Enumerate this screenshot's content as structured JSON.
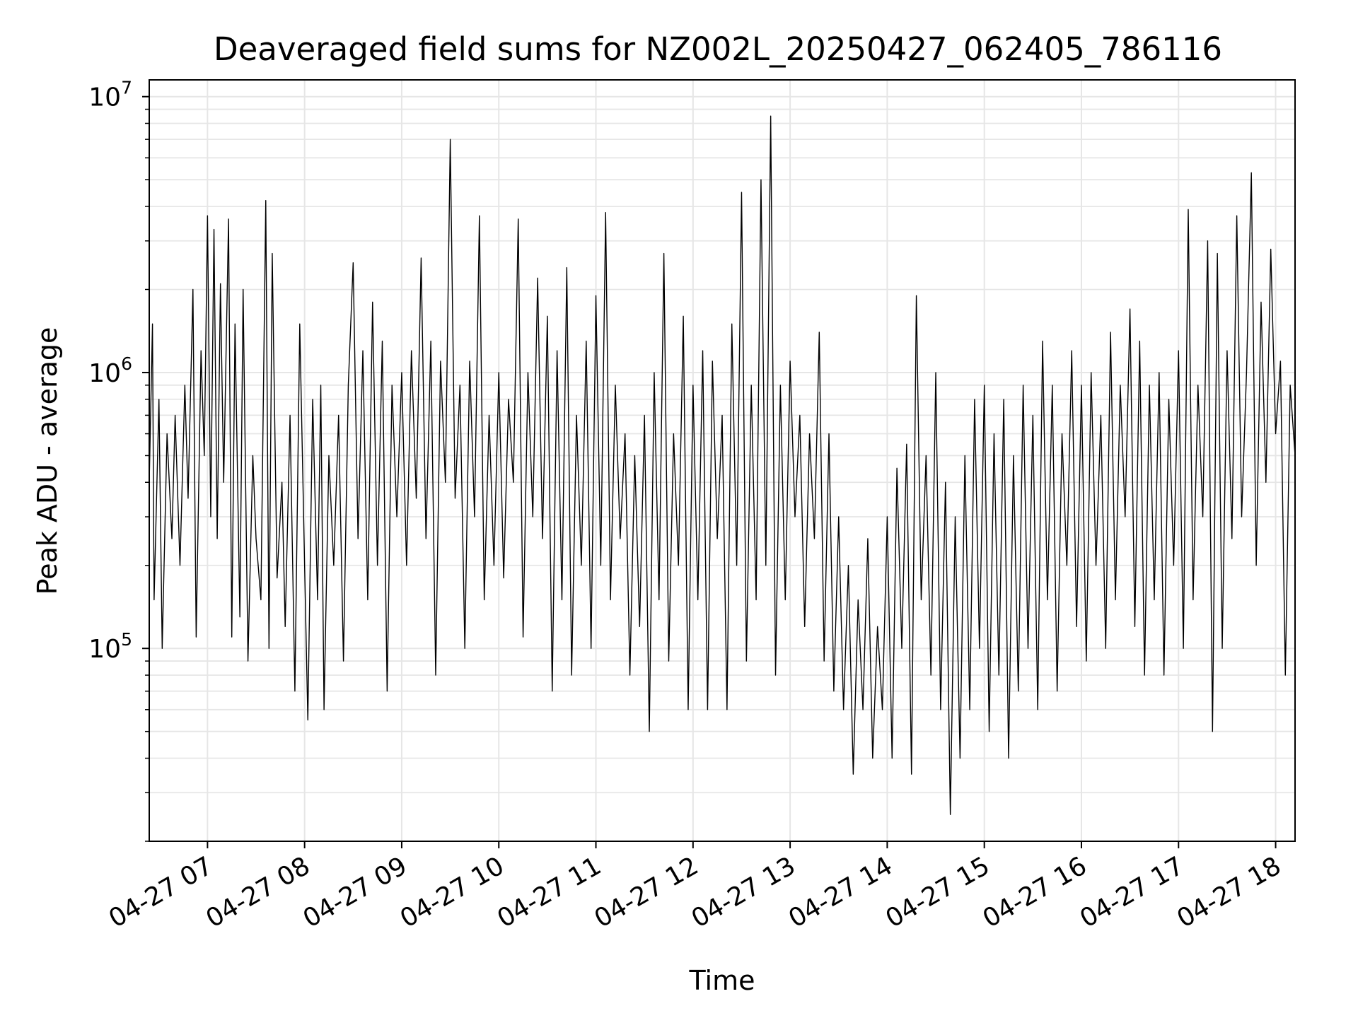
{
  "chart_data": {
    "type": "line",
    "title": "Deaveraged field sums for NZ002L_20250427_062405_786116",
    "xlabel": "Time",
    "ylabel": "Peak ADU - average",
    "yscale": "log",
    "ylim": [
      20000,
      11500000
    ],
    "xlim": [
      "2025-04-27 06:24",
      "2025-04-27 18:12"
    ],
    "grid": true,
    "legend": "none",
    "line_color": "#000000",
    "x_ticks": [
      {
        "value": "2025-04-27 07:00",
        "label": "04-27 07"
      },
      {
        "value": "2025-04-27 08:00",
        "label": "04-27 08"
      },
      {
        "value": "2025-04-27 09:00",
        "label": "04-27 09"
      },
      {
        "value": "2025-04-27 10:00",
        "label": "04-27 10"
      },
      {
        "value": "2025-04-27 11:00",
        "label": "04-27 11"
      },
      {
        "value": "2025-04-27 12:00",
        "label": "04-27 12"
      },
      {
        "value": "2025-04-27 13:00",
        "label": "04-27 13"
      },
      {
        "value": "2025-04-27 14:00",
        "label": "04-27 14"
      },
      {
        "value": "2025-04-27 15:00",
        "label": "04-27 15"
      },
      {
        "value": "2025-04-27 16:00",
        "label": "04-27 16"
      },
      {
        "value": "2025-04-27 17:00",
        "label": "04-27 17"
      },
      {
        "value": "2025-04-27 18:00",
        "label": "04-27 18"
      }
    ],
    "y_ticks": [
      {
        "value": 100000,
        "base": "10",
        "exp": "5"
      },
      {
        "value": 1000000,
        "base": "10",
        "exp": "6"
      },
      {
        "value": 10000000,
        "base": "10",
        "exp": "7"
      }
    ],
    "series": [
      {
        "points": [
          [
            "06:24",
            400000
          ],
          [
            "06:26",
            1500000
          ],
          [
            "06:27",
            150000
          ],
          [
            "06:30",
            800000
          ],
          [
            "06:32",
            100000
          ],
          [
            "06:35",
            600000
          ],
          [
            "06:38",
            250000
          ],
          [
            "06:40",
            700000
          ],
          [
            "06:43",
            200000
          ],
          [
            "06:46",
            900000
          ],
          [
            "06:48",
            350000
          ],
          [
            "06:51",
            2000000
          ],
          [
            "06:53",
            110000
          ],
          [
            "06:56",
            1200000
          ],
          [
            "06:58",
            500000
          ],
          [
            "07:00",
            3700000
          ],
          [
            "07:02",
            300000
          ],
          [
            "07:04",
            3300000
          ],
          [
            "07:06",
            250000
          ],
          [
            "07:08",
            2100000
          ],
          [
            "07:10",
            400000
          ],
          [
            "07:13",
            3600000
          ],
          [
            "07:15",
            110000
          ],
          [
            "07:17",
            1500000
          ],
          [
            "07:20",
            130000
          ],
          [
            "07:22",
            2000000
          ],
          [
            "07:25",
            90000
          ],
          [
            "07:28",
            500000
          ],
          [
            "07:30",
            250000
          ],
          [
            "07:33",
            150000
          ],
          [
            "07:36",
            4200000
          ],
          [
            "07:38",
            100000
          ],
          [
            "07:40",
            2700000
          ],
          [
            "07:43",
            180000
          ],
          [
            "07:46",
            400000
          ],
          [
            "07:48",
            120000
          ],
          [
            "07:51",
            700000
          ],
          [
            "07:54",
            70000
          ],
          [
            "07:57",
            1500000
          ],
          [
            "08:00",
            200000
          ],
          [
            "08:02",
            55000
          ],
          [
            "08:05",
            800000
          ],
          [
            "08:08",
            150000
          ],
          [
            "08:10",
            900000
          ],
          [
            "08:12",
            60000
          ],
          [
            "08:15",
            500000
          ],
          [
            "08:18",
            200000
          ],
          [
            "08:21",
            700000
          ],
          [
            "08:24",
            90000
          ],
          [
            "08:27",
            900000
          ],
          [
            "08:30",
            2500000
          ],
          [
            "08:33",
            250000
          ],
          [
            "08:36",
            1200000
          ],
          [
            "08:39",
            150000
          ],
          [
            "08:42",
            1800000
          ],
          [
            "08:45",
            200000
          ],
          [
            "08:48",
            1300000
          ],
          [
            "08:51",
            70000
          ],
          [
            "08:54",
            900000
          ],
          [
            "08:57",
            300000
          ],
          [
            "09:00",
            1000000
          ],
          [
            "09:03",
            200000
          ],
          [
            "09:06",
            1200000
          ],
          [
            "09:09",
            350000
          ],
          [
            "09:12",
            2600000
          ],
          [
            "09:15",
            250000
          ],
          [
            "09:18",
            1300000
          ],
          [
            "09:21",
            80000
          ],
          [
            "09:24",
            1100000
          ],
          [
            "09:27",
            400000
          ],
          [
            "09:30",
            7000000
          ],
          [
            "09:33",
            350000
          ],
          [
            "09:36",
            900000
          ],
          [
            "09:39",
            100000
          ],
          [
            "09:42",
            1100000
          ],
          [
            "09:45",
            300000
          ],
          [
            "09:48",
            3700000
          ],
          [
            "09:51",
            150000
          ],
          [
            "09:54",
            700000
          ],
          [
            "09:57",
            200000
          ],
          [
            "10:00",
            1000000
          ],
          [
            "10:03",
            180000
          ],
          [
            "10:06",
            800000
          ],
          [
            "10:09",
            400000
          ],
          [
            "10:12",
            3600000
          ],
          [
            "10:15",
            110000
          ],
          [
            "10:18",
            1000000
          ],
          [
            "10:21",
            300000
          ],
          [
            "10:24",
            2200000
          ],
          [
            "10:27",
            250000
          ],
          [
            "10:30",
            1600000
          ],
          [
            "10:33",
            70000
          ],
          [
            "10:36",
            1200000
          ],
          [
            "10:39",
            150000
          ],
          [
            "10:42",
            2400000
          ],
          [
            "10:45",
            80000
          ],
          [
            "10:48",
            700000
          ],
          [
            "10:51",
            200000
          ],
          [
            "10:54",
            1300000
          ],
          [
            "10:57",
            100000
          ],
          [
            "11:00",
            1900000
          ],
          [
            "11:03",
            200000
          ],
          [
            "11:06",
            3800000
          ],
          [
            "11:09",
            150000
          ],
          [
            "11:12",
            900000
          ],
          [
            "11:15",
            250000
          ],
          [
            "11:18",
            600000
          ],
          [
            "11:21",
            80000
          ],
          [
            "11:24",
            500000
          ],
          [
            "11:27",
            120000
          ],
          [
            "11:30",
            700000
          ],
          [
            "11:33",
            50000
          ],
          [
            "11:36",
            1000000
          ],
          [
            "11:39",
            150000
          ],
          [
            "11:42",
            2700000
          ],
          [
            "11:45",
            90000
          ],
          [
            "11:48",
            600000
          ],
          [
            "11:51",
            200000
          ],
          [
            "11:54",
            1600000
          ],
          [
            "11:57",
            60000
          ],
          [
            "12:00",
            900000
          ],
          [
            "12:03",
            150000
          ],
          [
            "12:06",
            1200000
          ],
          [
            "12:09",
            60000
          ],
          [
            "12:12",
            1100000
          ],
          [
            "12:15",
            250000
          ],
          [
            "12:18",
            700000
          ],
          [
            "12:21",
            60000
          ],
          [
            "12:24",
            1500000
          ],
          [
            "12:27",
            200000
          ],
          [
            "12:30",
            4500000
          ],
          [
            "12:33",
            90000
          ],
          [
            "12:36",
            900000
          ],
          [
            "12:39",
            150000
          ],
          [
            "12:42",
            5000000
          ],
          [
            "12:45",
            200000
          ],
          [
            "12:48",
            8500000
          ],
          [
            "12:51",
            80000
          ],
          [
            "12:54",
            900000
          ],
          [
            "12:57",
            150000
          ],
          [
            "13:00",
            1100000
          ],
          [
            "13:03",
            300000
          ],
          [
            "13:06",
            700000
          ],
          [
            "13:09",
            120000
          ],
          [
            "13:12",
            600000
          ],
          [
            "13:15",
            250000
          ],
          [
            "13:18",
            1400000
          ],
          [
            "13:21",
            90000
          ],
          [
            "13:24",
            600000
          ],
          [
            "13:27",
            70000
          ],
          [
            "13:30",
            300000
          ],
          [
            "13:33",
            60000
          ],
          [
            "13:36",
            200000
          ],
          [
            "13:39",
            35000
          ],
          [
            "13:42",
            150000
          ],
          [
            "13:45",
            60000
          ],
          [
            "13:48",
            250000
          ],
          [
            "13:51",
            40000
          ],
          [
            "13:54",
            120000
          ],
          [
            "13:57",
            60000
          ],
          [
            "14:00",
            300000
          ],
          [
            "14:03",
            40000
          ],
          [
            "14:06",
            450000
          ],
          [
            "14:09",
            100000
          ],
          [
            "14:12",
            550000
          ],
          [
            "14:15",
            35000
          ],
          [
            "14:18",
            1900000
          ],
          [
            "14:21",
            150000
          ],
          [
            "14:24",
            500000
          ],
          [
            "14:27",
            80000
          ],
          [
            "14:30",
            1000000
          ],
          [
            "14:33",
            60000
          ],
          [
            "14:36",
            400000
          ],
          [
            "14:39",
            25000
          ],
          [
            "14:42",
            300000
          ],
          [
            "14:45",
            40000
          ],
          [
            "14:48",
            500000
          ],
          [
            "14:51",
            60000
          ],
          [
            "14:54",
            800000
          ],
          [
            "14:57",
            100000
          ],
          [
            "15:00",
            900000
          ],
          [
            "15:03",
            50000
          ],
          [
            "15:06",
            600000
          ],
          [
            "15:09",
            80000
          ],
          [
            "15:12",
            800000
          ],
          [
            "15:15",
            40000
          ],
          [
            "15:18",
            500000
          ],
          [
            "15:21",
            70000
          ],
          [
            "15:24",
            900000
          ],
          [
            "15:27",
            100000
          ],
          [
            "15:30",
            700000
          ],
          [
            "15:33",
            60000
          ],
          [
            "15:36",
            1300000
          ],
          [
            "15:39",
            150000
          ],
          [
            "15:42",
            900000
          ],
          [
            "15:45",
            70000
          ],
          [
            "15:48",
            600000
          ],
          [
            "15:51",
            200000
          ],
          [
            "15:54",
            1200000
          ],
          [
            "15:57",
            120000
          ],
          [
            "16:00",
            900000
          ],
          [
            "16:03",
            90000
          ],
          [
            "16:06",
            1000000
          ],
          [
            "16:09",
            200000
          ],
          [
            "16:12",
            700000
          ],
          [
            "16:15",
            100000
          ],
          [
            "16:18",
            1400000
          ],
          [
            "16:21",
            150000
          ],
          [
            "16:24",
            900000
          ],
          [
            "16:27",
            300000
          ],
          [
            "16:30",
            1700000
          ],
          [
            "16:33",
            120000
          ],
          [
            "16:36",
            1300000
          ],
          [
            "16:39",
            80000
          ],
          [
            "16:42",
            900000
          ],
          [
            "16:45",
            150000
          ],
          [
            "16:48",
            1000000
          ],
          [
            "16:51",
            80000
          ],
          [
            "16:54",
            800000
          ],
          [
            "16:57",
            200000
          ],
          [
            "17:00",
            1200000
          ],
          [
            "17:03",
            100000
          ],
          [
            "17:06",
            3900000
          ],
          [
            "17:09",
            150000
          ],
          [
            "17:12",
            900000
          ],
          [
            "17:15",
            300000
          ],
          [
            "17:18",
            3000000
          ],
          [
            "17:21",
            50000
          ],
          [
            "17:24",
            2700000
          ],
          [
            "17:27",
            100000
          ],
          [
            "17:30",
            1200000
          ],
          [
            "17:33",
            250000
          ],
          [
            "17:36",
            3700000
          ],
          [
            "17:39",
            300000
          ],
          [
            "17:42",
            1000000
          ],
          [
            "17:45",
            5300000
          ],
          [
            "17:48",
            200000
          ],
          [
            "17:51",
            1800000
          ],
          [
            "17:54",
            400000
          ],
          [
            "17:57",
            2800000
          ],
          [
            "18:00",
            600000
          ],
          [
            "18:03",
            1100000
          ],
          [
            "18:06",
            80000
          ],
          [
            "18:09",
            900000
          ],
          [
            "18:12",
            500000
          ]
        ]
      }
    ]
  }
}
